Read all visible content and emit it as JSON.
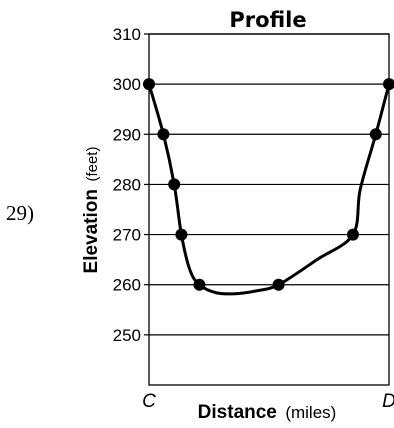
{
  "question_number": "29)",
  "chart_data": {
    "type": "line",
    "title": "Profile",
    "xlabel": "Distance",
    "xlabel_unit": "(miles)",
    "ylabel": "Elevation",
    "ylabel_unit": "(feet)",
    "ylim": [
      240,
      310
    ],
    "yticks": [
      250,
      260,
      270,
      280,
      290,
      300,
      310
    ],
    "x_endpoint_labels": [
      "C",
      "D"
    ],
    "grid": "horizontal",
    "series": [
      {
        "x": [
          0,
          0.06,
          0.105,
          0.135,
          0.21,
          0.54,
          0.85,
          0.945,
          1.0
        ],
        "y": [
          300,
          290,
          280,
          270,
          260,
          260,
          270,
          290,
          300
        ]
      }
    ],
    "curve_x": [
      0,
      0.06,
      0.105,
      0.135,
      0.17,
      0.21,
      0.28,
      0.36,
      0.45,
      0.54,
      0.7,
      0.85,
      0.88,
      0.945,
      1.0
    ],
    "curve_y": [
      300,
      290,
      280,
      270,
      263,
      260,
      258.4,
      258.2,
      258.8,
      260,
      265,
      270,
      279,
      290,
      300
    ]
  }
}
